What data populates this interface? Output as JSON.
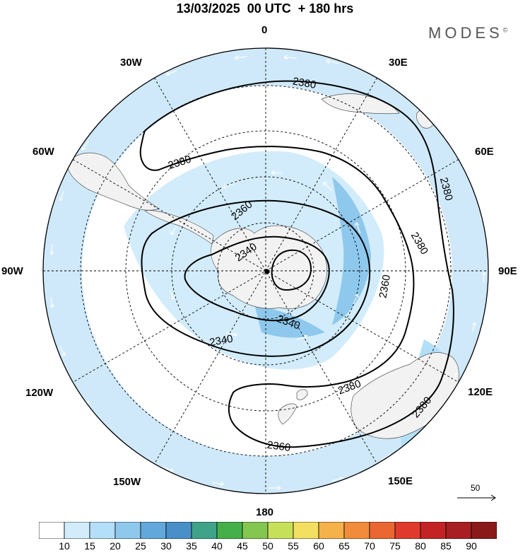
{
  "header": {
    "title": "13/03/2025  00 UTC  + 180 hrs",
    "logo": "MODES",
    "logo_mark": "©"
  },
  "map": {
    "projection": "polar stereographic, south pole centered",
    "longitude_labels": {
      "top": "0",
      "top_right": "30E",
      "right_upper": "60E",
      "right": "90E",
      "right_lower": "120E",
      "bottom_right": "150E",
      "bottom": "180",
      "bottom_left": "150W",
      "left_lower": "120W",
      "left": "90W",
      "left_upper": "60W",
      "top_left": "30W"
    },
    "contour_labels": [
      "2380",
      "2380",
      "2380",
      "2380",
      "2380",
      "2380",
      "2360",
      "2360",
      "2360",
      "2340",
      "2340"
    ],
    "contour_color": "#000000",
    "land_color": "#f2f2f2",
    "wind_vectors": "white arrows"
  },
  "reference_vector": {
    "label": "50"
  },
  "colorbar": {
    "ticks": [
      "10",
      "15",
      "20",
      "25",
      "30",
      "35",
      "40",
      "45",
      "50",
      "55",
      "60",
      "65",
      "70",
      "75",
      "80",
      "85",
      "90"
    ],
    "colors": [
      "#ffffff",
      "#d2ecfb",
      "#b4dff8",
      "#8ec8ec",
      "#63a8db",
      "#4a90c8",
      "#3fa38a",
      "#45b04a",
      "#84c750",
      "#c7e05a",
      "#f3e061",
      "#f5b14a",
      "#f08c3c",
      "#eb6732",
      "#e03a2c",
      "#c42325",
      "#a81e22",
      "#8a1a1a"
    ]
  }
}
